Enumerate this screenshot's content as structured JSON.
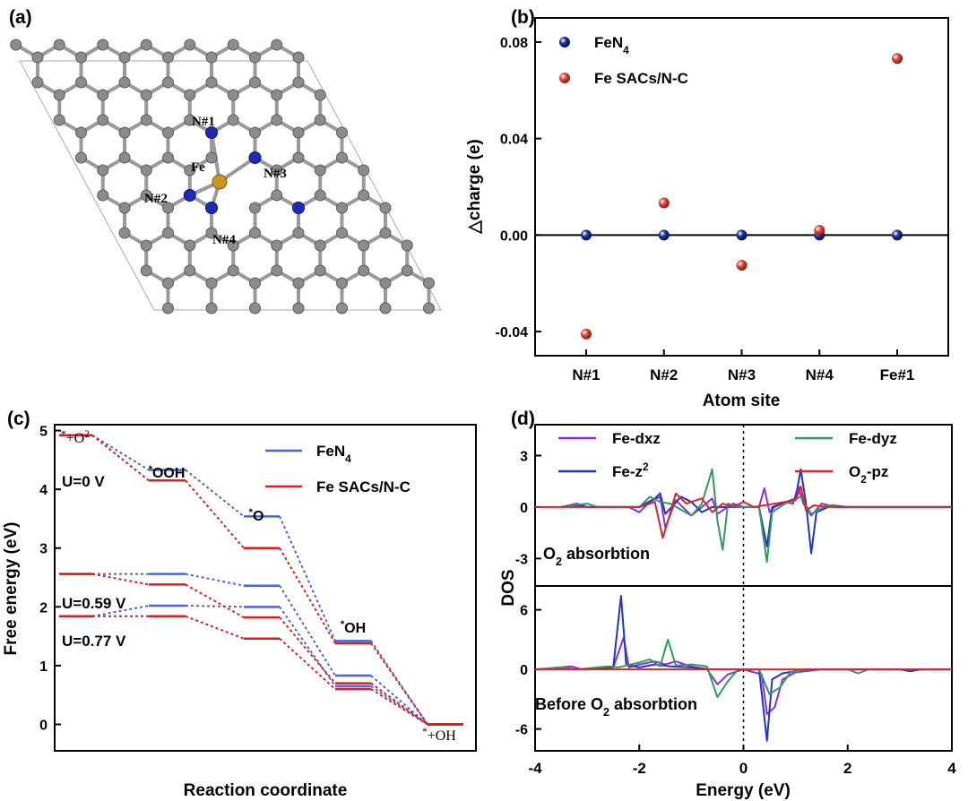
{
  "panels": {
    "a": "(a)",
    "b": "(b)",
    "c": "(c)",
    "d": "(d)"
  },
  "structure": {
    "labels": {
      "n1": "N#1",
      "n2": "N#2",
      "n3": "N#3",
      "n4": "N#4",
      "fe": "Fe"
    },
    "colors": {
      "carbon": "#8c8c8c",
      "nitrogen": "#1f2bb8",
      "iron": "#c99624",
      "bond": "#9a9a9a",
      "cell": "#9a9a9a"
    }
  },
  "chart_data": [
    {
      "id": "b",
      "type": "scatter",
      "xlabel": "Atom site",
      "ylabel": "△charge (e)",
      "categories": [
        "N#1",
        "N#2",
        "N#3",
        "N#4",
        "Fe#1"
      ],
      "ylim": [
        -0.05,
        0.09
      ],
      "yticks": [
        -0.04,
        0.0,
        0.04,
        0.08
      ],
      "ytick_labels": [
        "-0.04",
        "0.00",
        "0.04",
        "0.08"
      ],
      "legend_position": "top-left",
      "grid": false,
      "series": [
        {
          "name_main": "FeN",
          "name_sub": "4",
          "color": "#1a2fa0",
          "values": [
            0.0,
            0.0,
            0.0,
            0.0,
            0.0
          ]
        },
        {
          "name_main": "Fe SACs/N-C",
          "name_sub": "",
          "color": "#e0473c",
          "values": [
            -0.041,
            0.0133,
            -0.0125,
            0.002,
            0.0732
          ]
        }
      ]
    },
    {
      "id": "c",
      "type": "line",
      "xlabel": "Reaction coordinate",
      "ylabel": "Free energy (eV)",
      "ylim": [
        -0.45,
        5.1
      ],
      "yticks": [
        0,
        1,
        2,
        3,
        4,
        5
      ],
      "ytick_labels": [
        "0",
        "1",
        "2",
        "3",
        "4",
        "5"
      ],
      "legend_position": "top-right",
      "grid": false,
      "steps": [
        "*+O2",
        "*OOH",
        "*O",
        "*OH",
        "*+OH"
      ],
      "step_labels": [
        {
          "sup": "*",
          "main": "+O",
          "tail": "2"
        },
        {
          "sup": "*",
          "main": "OOH",
          "tail": ""
        },
        {
          "sup": "*",
          "main": "O",
          "tail": ""
        },
        {
          "sup": "*",
          "main": "OH",
          "tail": ""
        },
        {
          "sup": "*",
          "main": "+OH",
          "tail": ""
        }
      ],
      "potential_labels": [
        "U=0 V",
        "U=0.59 V",
        "U=0.77 V"
      ],
      "series": [
        {
          "name_main": "FeN",
          "name_sub": "4",
          "color": "#4a64e0",
          "profiles": [
            [
              4.92,
              4.33,
              3.54,
              1.42,
              0.0
            ],
            [
              2.56,
              2.56,
              2.36,
              0.83,
              0.0
            ],
            [
              1.84,
              2.02,
              2.0,
              0.65,
              0.0
            ]
          ]
        },
        {
          "name_main": "Fe SACs/N-C",
          "name_sub": "",
          "color": "#d62020",
          "profiles": [
            [
              4.92,
              4.15,
              3.0,
              1.38,
              0.0
            ],
            [
              2.56,
              2.38,
              1.82,
              0.7,
              0.0
            ],
            [
              1.84,
              1.84,
              1.46,
              0.6,
              0.0
            ]
          ]
        }
      ]
    },
    {
      "id": "d",
      "type": "line",
      "xlabel": "Energy (eV)",
      "ylabel": "DOS",
      "xlim": [
        -4,
        4
      ],
      "xticks": [
        -4,
        -2,
        0,
        2,
        4
      ],
      "xtick_labels": [
        "-4",
        "-2",
        "0",
        "2",
        "4"
      ],
      "panels": [
        {
          "label_main": "O",
          "label_sub": "2",
          "label_tail": " absorbtion",
          "ylim": [
            -4.6,
            4.8
          ],
          "yticks": [
            -3,
            0,
            3
          ],
          "ytick_labels": [
            "-3",
            "0",
            "3"
          ]
        },
        {
          "label_main": "Before O",
          "label_sub": "2",
          "label_tail": " absorbtion",
          "ylim": [
            -8.2,
            8.4
          ],
          "yticks": [
            -6,
            0,
            6
          ],
          "ytick_labels": [
            "-6",
            "0",
            "6"
          ]
        }
      ],
      "legend_position": "top",
      "series": [
        {
          "name_main": "Fe-dxz",
          "name_sup": "",
          "name_sub": "",
          "name_tail": "",
          "color": "#8a2be2",
          "top": [
            [
              -3.5,
              0
            ],
            [
              -3.2,
              0.2
            ],
            [
              -3.0,
              0
            ],
            [
              -2.2,
              0
            ],
            [
              -2.0,
              -0.3
            ],
            [
              -1.8,
              0.3
            ],
            [
              -1.6,
              0.6
            ],
            [
              -1.5,
              -1.2
            ],
            [
              -1.3,
              0.4
            ],
            [
              -1.0,
              -0.5
            ],
            [
              -0.8,
              0
            ],
            [
              -0.6,
              0.5
            ],
            [
              -0.5,
              -0.4
            ],
            [
              -0.2,
              0.2
            ],
            [
              0,
              0
            ],
            [
              0.3,
              0
            ],
            [
              0.4,
              1.1
            ],
            [
              0.5,
              -0.3
            ],
            [
              0.6,
              0
            ],
            [
              0.8,
              0.3
            ],
            [
              0.95,
              0.2
            ],
            [
              1.05,
              1.2
            ],
            [
              1.15,
              0.2
            ],
            [
              1.3,
              -0.5
            ],
            [
              1.5,
              0.2
            ],
            [
              1.8,
              0
            ],
            [
              4,
              0
            ]
          ],
          "bottom": [
            [
              -4,
              0
            ],
            [
              -3.3,
              0.3
            ],
            [
              -3.1,
              0
            ],
            [
              -2.5,
              0.2
            ],
            [
              -2.3,
              3.2
            ],
            [
              -2.2,
              0.2
            ],
            [
              -2.0,
              0.5
            ],
            [
              -1.7,
              0.8
            ],
            [
              -1.5,
              0.5
            ],
            [
              -1.3,
              0.8
            ],
            [
              -1.0,
              0.3
            ],
            [
              -0.7,
              0
            ],
            [
              -0.5,
              -1.5
            ],
            [
              -0.3,
              -0.5
            ],
            [
              0,
              0
            ],
            [
              0.35,
              -0.5
            ],
            [
              0.45,
              -4.5
            ],
            [
              0.6,
              -3.8
            ],
            [
              0.75,
              -1.0
            ],
            [
              1.0,
              -0.3
            ],
            [
              1.5,
              0
            ],
            [
              4,
              0
            ]
          ]
        },
        {
          "name_main": "Fe-z",
          "name_sup": "2",
          "name_sub": "",
          "name_tail": "",
          "color": "#1f35c8",
          "top": [
            [
              -3.5,
              0
            ],
            [
              -3.2,
              0.1
            ],
            [
              -3.0,
              0
            ],
            [
              -2.0,
              0
            ],
            [
              -1.7,
              0.5
            ],
            [
              -1.6,
              0.8
            ],
            [
              -1.5,
              -0.4
            ],
            [
              -1.2,
              0.6
            ],
            [
              -1.0,
              0.3
            ],
            [
              -0.8,
              -0.3
            ],
            [
              -0.6,
              0
            ],
            [
              0,
              0
            ],
            [
              0.3,
              0
            ],
            [
              0.45,
              -2.3
            ],
            [
              0.55,
              0
            ],
            [
              1.0,
              0.5
            ],
            [
              1.1,
              2.2
            ],
            [
              1.2,
              0.2
            ],
            [
              1.3,
              -2.7
            ],
            [
              1.4,
              -0.3
            ],
            [
              1.7,
              0.1
            ],
            [
              2.0,
              0
            ],
            [
              4,
              0
            ]
          ],
          "bottom": [
            [
              -4,
              0
            ],
            [
              -3.0,
              0
            ],
            [
              -2.5,
              0.2
            ],
            [
              -2.35,
              7.4
            ],
            [
              -2.25,
              0.5
            ],
            [
              -2.0,
              0.2
            ],
            [
              -1.7,
              0.5
            ],
            [
              -1.4,
              0.3
            ],
            [
              -1.0,
              0.2
            ],
            [
              -0.6,
              0
            ],
            [
              0,
              0
            ],
            [
              0.3,
              0
            ],
            [
              0.45,
              -7.2
            ],
            [
              0.55,
              -1.0
            ],
            [
              0.75,
              -0.4
            ],
            [
              1.2,
              0
            ],
            [
              3.0,
              0
            ],
            [
              3.2,
              -0.2
            ],
            [
              3.4,
              0
            ],
            [
              4,
              0
            ]
          ]
        },
        {
          "name_main": "Fe-dyz",
          "name_sup": "",
          "name_sub": "",
          "name_tail": "",
          "color": "#2e9d5b",
          "top": [
            [
              -3.5,
              0
            ],
            [
              -3.0,
              0.2
            ],
            [
              -2.8,
              0
            ],
            [
              -2.0,
              0
            ],
            [
              -1.8,
              0.6
            ],
            [
              -1.6,
              0.3
            ],
            [
              -1.4,
              0.2
            ],
            [
              -1.0,
              -0.5
            ],
            [
              -0.8,
              0.2
            ],
            [
              -0.6,
              2.2
            ],
            [
              -0.5,
              -0.8
            ],
            [
              -0.4,
              -2.5
            ],
            [
              -0.3,
              0.2
            ],
            [
              -0.1,
              0
            ],
            [
              0.3,
              0
            ],
            [
              0.45,
              -3.2
            ],
            [
              0.55,
              -0.3
            ],
            [
              0.8,
              0.2
            ],
            [
              1.1,
              0.6
            ],
            [
              1.3,
              -0.4
            ],
            [
              1.6,
              0.1
            ],
            [
              1.9,
              0
            ],
            [
              4,
              0
            ]
          ],
          "bottom": [
            [
              -4,
              0
            ],
            [
              -3.5,
              0.2
            ],
            [
              -3.2,
              0
            ],
            [
              -2.6,
              0.3
            ],
            [
              -2.4,
              0.2
            ],
            [
              -2.0,
              0.7
            ],
            [
              -1.8,
              1.0
            ],
            [
              -1.6,
              0.3
            ],
            [
              -1.45,
              3.0
            ],
            [
              -1.3,
              0.4
            ],
            [
              -1.0,
              0.5
            ],
            [
              -0.7,
              0.3
            ],
            [
              -0.5,
              -2.8
            ],
            [
              -0.3,
              -1.2
            ],
            [
              -0.1,
              0
            ],
            [
              0.3,
              0
            ],
            [
              0.5,
              -2.5
            ],
            [
              0.7,
              -1.8
            ],
            [
              0.9,
              -0.3
            ],
            [
              1.2,
              0
            ],
            [
              2.0,
              0
            ],
            [
              2.2,
              -0.4
            ],
            [
              2.4,
              0
            ],
            [
              4,
              0
            ]
          ]
        },
        {
          "name_main": "O",
          "name_sup": "",
          "name_sub": "2",
          "name_tail": "-pz",
          "color": "#e02222",
          "top": [
            [
              -4,
              0
            ],
            [
              -3.0,
              0
            ],
            [
              -2.0,
              0
            ],
            [
              -1.7,
              0.3
            ],
            [
              -1.55,
              -1.8
            ],
            [
              -1.4,
              -0.3
            ],
            [
              -1.3,
              0.8
            ],
            [
              -1.1,
              0.2
            ],
            [
              -0.8,
              0.5
            ],
            [
              -0.6,
              -0.3
            ],
            [
              -0.4,
              0.2
            ],
            [
              -0.2,
              0
            ],
            [
              0,
              0.3
            ],
            [
              0.2,
              0
            ],
            [
              1.0,
              0.4
            ],
            [
              1.1,
              1.2
            ],
            [
              1.2,
              -0.2
            ],
            [
              1.35,
              0.1
            ],
            [
              1.6,
              0
            ],
            [
              4,
              0
            ]
          ],
          "bottom": [
            [
              -4,
              0
            ],
            [
              4,
              0
            ]
          ]
        }
      ]
    }
  ]
}
